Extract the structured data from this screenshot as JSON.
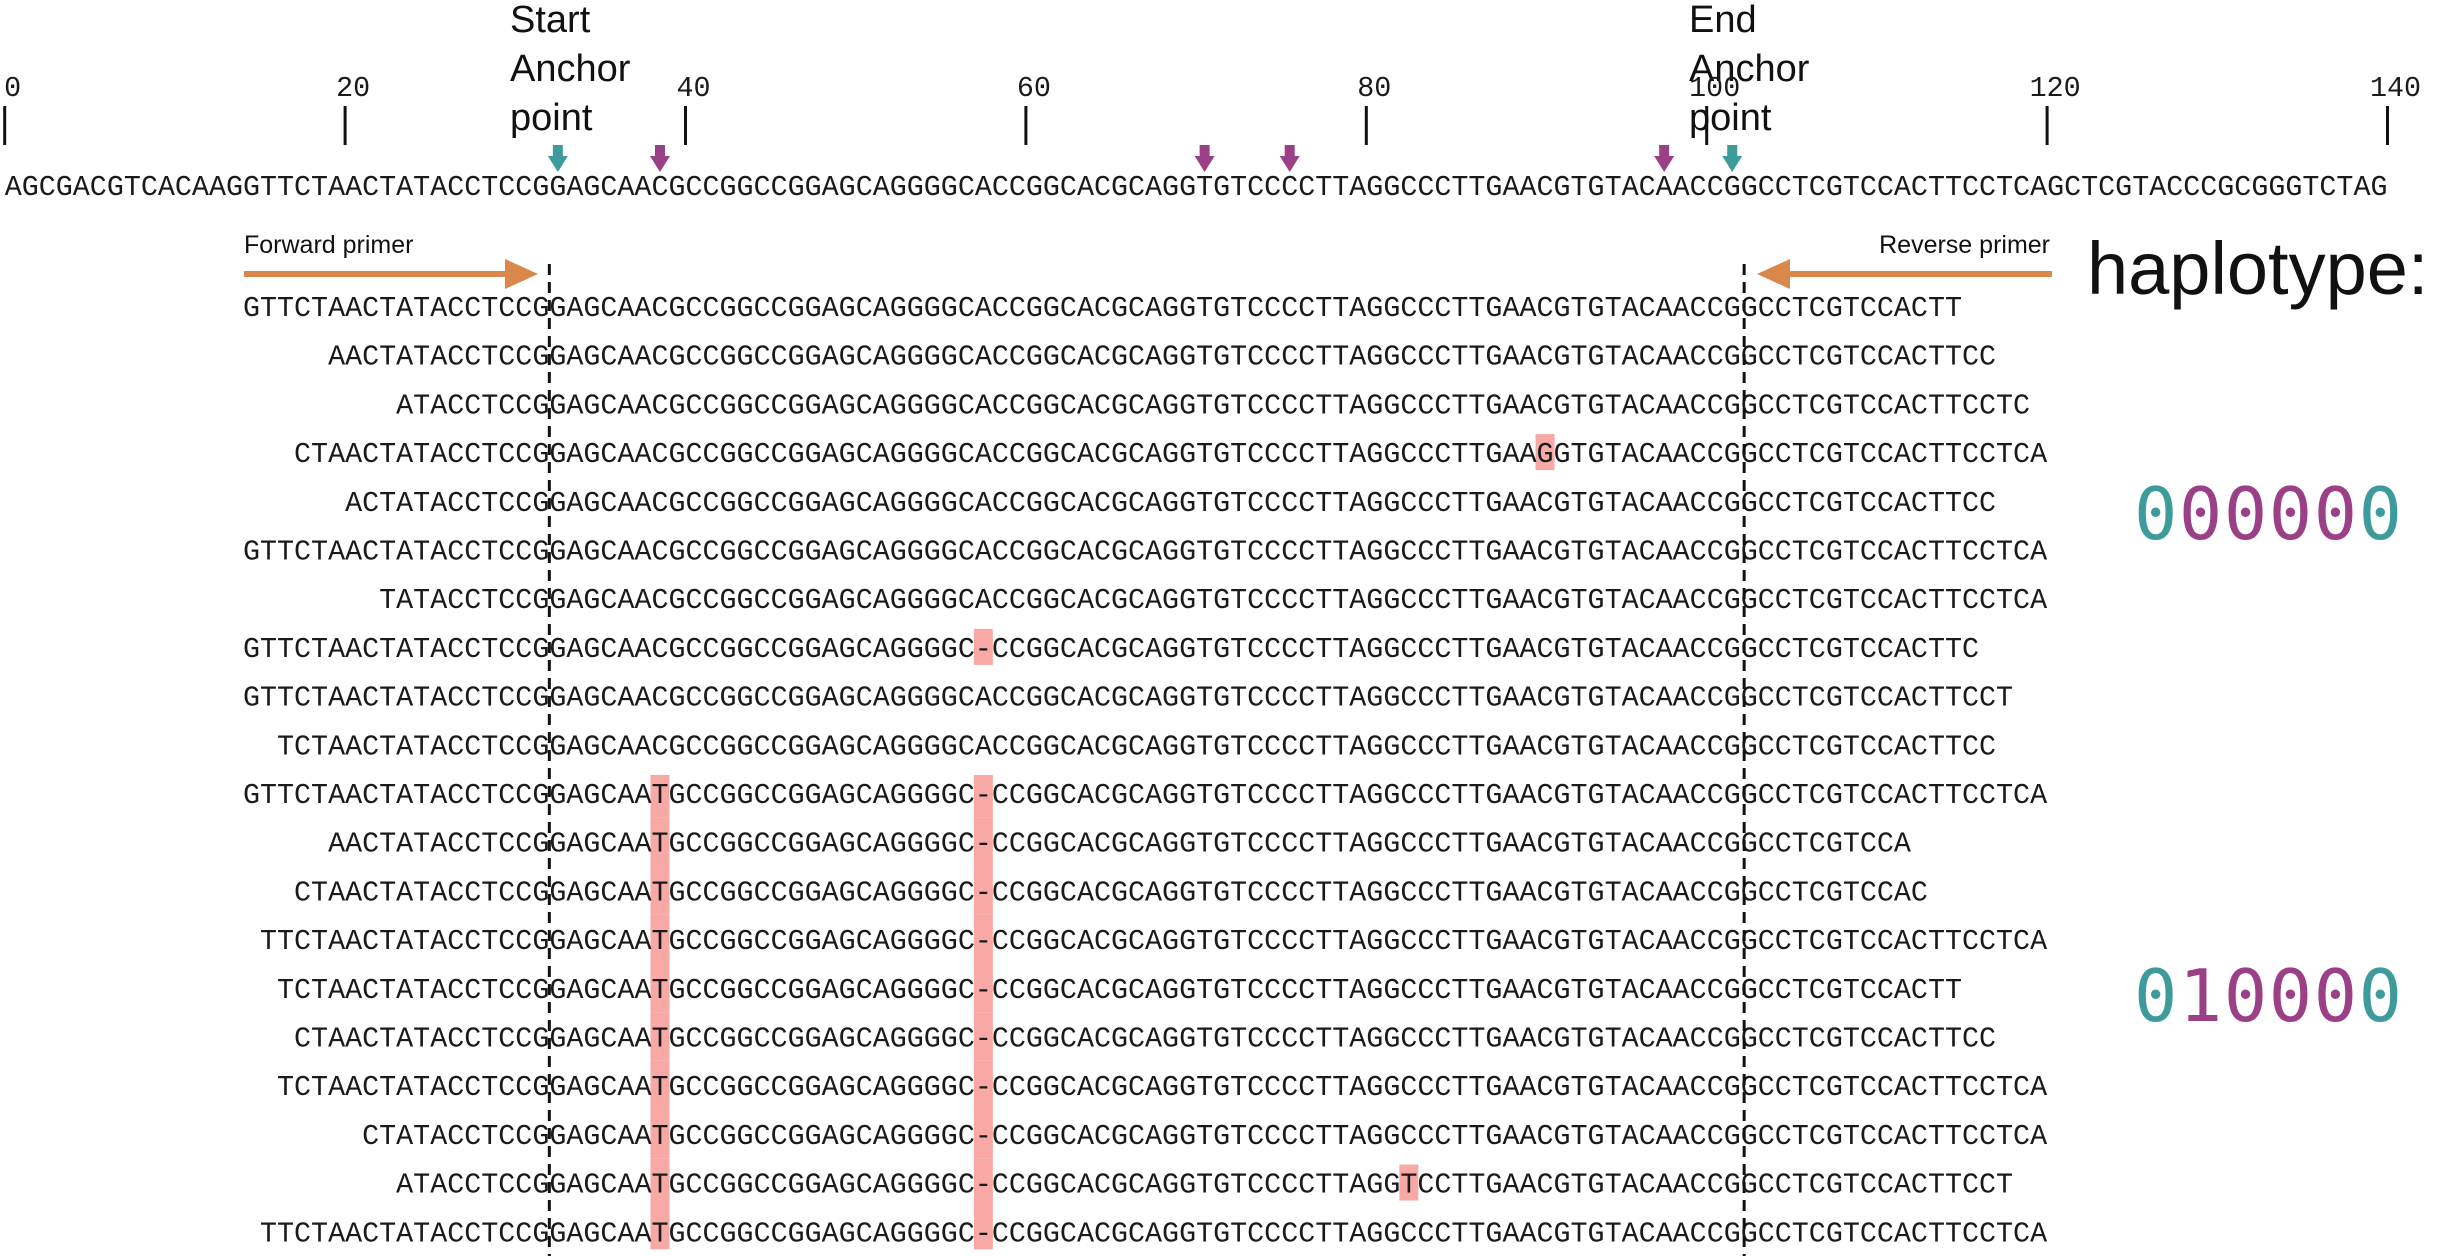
{
  "ruler": {
    "ticks": [
      0,
      20,
      40,
      60,
      80,
      100,
      120,
      140
    ]
  },
  "annotations": {
    "start_anchor": [
      "Start",
      "Anchor",
      "point"
    ],
    "end_anchor": [
      "End",
      "Anchor",
      "point"
    ]
  },
  "reference": "AGCGACGTCACAAGGTTCTAACTATACCTCCGGAGCAACGCCGGCCGGAGCAGGGGCACCGGCACGCAGGTGTCCCCTTAGGCCCTTGAACGTGTACAACCGGCCTCGTCCACTTCCTCAGCTCGTACCCGCGGGTCTAG",
  "forward_primer": "Forward primer",
  "reverse_primer": "Reverse primer",
  "haplotype_label": "haplotype:",
  "reads": [
    "GTTCTAACTATACCTCCGGAGCAACGCCGGCCGGAGCAGGGGCACCGGCACGCAGGTGTCCCCTTAGGCCCTTGAACGTGTACAACCGGCCTCGTCCACTT",
    "AACTATACCTCCGGAGCAACGCCGGCCGGAGCAGGGGCACCGGCACGCAGGTGTCCCCTTAGGCCCTTGAACGTGTACAACCGGCCTCGTCCACTTCC",
    "ATACCTCCGGAGCAACGCCGGCCGGAGCAGGGGCACCGGCACGCAGGTGTCCCCTTAGGCCCTTGAACGTGTACAACCGGCCTCGTCCACTTCCTC",
    "CTAACTATACCTCCGGAGCAACGCCGGCCGGAGCAGGGGCACCGGCACGCAGGTGTCCCCTTAGGCCCTTGAAGGTGTACAACCGGCCTCGTCCACTTCCTCA",
    "ACTATACCTCCGGAGCAACGCCGGCCGGAGCAGGGGCACCGGCACGCAGGTGTCCCCTTAGGCCCTTGAACGTGTACAACCGGCCTCGTCCACTTCC",
    "GTTCTAACTATACCTCCGGAGCAACGCCGGCCGGAGCAGGGGCACCGGCACGCAGGTGTCCCCTTAGGCCCTTGAACGTGTACAACCGGCCTCGTCCACTTCCTCA",
    "TATACCTCCGGAGCAACGCCGGCCGGAGCAGGGGCACCGGCACGCAGGTGTCCCCTTAGGCCCTTGAACGTGTACAACCGGCCTCGTCCACTTCCTCA",
    "GTTCTAACTATACCTCCGGAGCAACGCCGGCCGGAGCAGGGGC-CCGGCACGCAGGTGTCCCCTTAGGCCCTTGAACGTGTACAACCGGCCTCGTCCACTTC",
    "GTTCTAACTATACCTCCGGAGCAACGCCGGCCGGAGCAGGGGCACCGGCACGCAGGTGTCCCCTTAGGCCCTTGAACGTGTACAACCGGCCTCGTCCACTTCCT",
    "TCTAACTATACCTCCGGAGCAACGCCGGCCGGAGCAGGGGCACCGGCACGCAGGTGTCCCCTTAGGCCCTTGAACGTGTACAACCGGCCTCGTCCACTTCC",
    "GTTCTAACTATACCTCCGGAGCAATGCCGGCCGGAGCAGGGGC-CCGGCACGCAGGTGTCCCCTTAGGCCCTTGAACGTGTACAACCGGCCTCGTCCACTTCCTCA",
    "AACTATACCTCCGGAGCAATGCCGGCCGGAGCAGGGGC-CCGGCACGCAGGTGTCCCCTTAGGCCCTTGAACGTGTACAACCGGCCTCGTCCA",
    "CTAACTATACCTCCGGAGCAATGCCGGCCGGAGCAGGGGC-CCGGCACGCAGGTGTCCCCTTAGGCCCTTGAACGTGTACAACCGGCCTCGTCCAC",
    "TTCTAACTATACCTCCGGAGCAATGCCGGCCGGAGCAGGGGC-CCGGCACGCAGGTGTCCCCTTAGGCCCTTGAACGTGTACAACCGGCCTCGTCCACTTCCTCA",
    "TCTAACTATACCTCCGGAGCAATGCCGGCCGGAGCAGGGGC-CCGGCACGCAGGTGTCCCCTTAGGCCCTTGAACGTGTACAACCGGCCTCGTCCACTT",
    "CTAACTATACCTCCGGAGCAATGCCGGCCGGAGCAGGGGC-CCGGCACGCAGGTGTCCCCTTAGGCCCTTGAACGTGTACAACCGGCCTCGTCCACTTCC",
    "TCTAACTATACCTCCGGAGCAATGCCGGCCGGAGCAGGGGC-CCGGCACGCAGGTGTCCCCTTAGGCCCTTGAACGTGTACAACCGGCCTCGTCCACTTCCTCA",
    "CTATACCTCCGGAGCAATGCCGGCCGGAGCAGGGGC-CCGGCACGCAGGTGTCCCCTTAGGCCCTTGAACGTGTACAACCGGCCTCGTCCACTTCCTCA",
    "ATACCTCCGGAGCAATGCCGGCCGGAGCAGGGGC-CCGGCACGCAGGTGTCCCCTTAGGTCCTTGAACGTGTACAACCGGCCTCGTCCACTTCCT",
    "TTCTAACTATACCTCCGGAGCAATGCCGGCCGGAGCAGGGGC-CCGGCACGCAGGTGTCCCCTTAGGCCCTTGAACGTGTACAACCGGCCTCGTCCACTTCCTCA"
  ],
  "haplotypes": [
    "000000",
    "010000"
  ]
}
